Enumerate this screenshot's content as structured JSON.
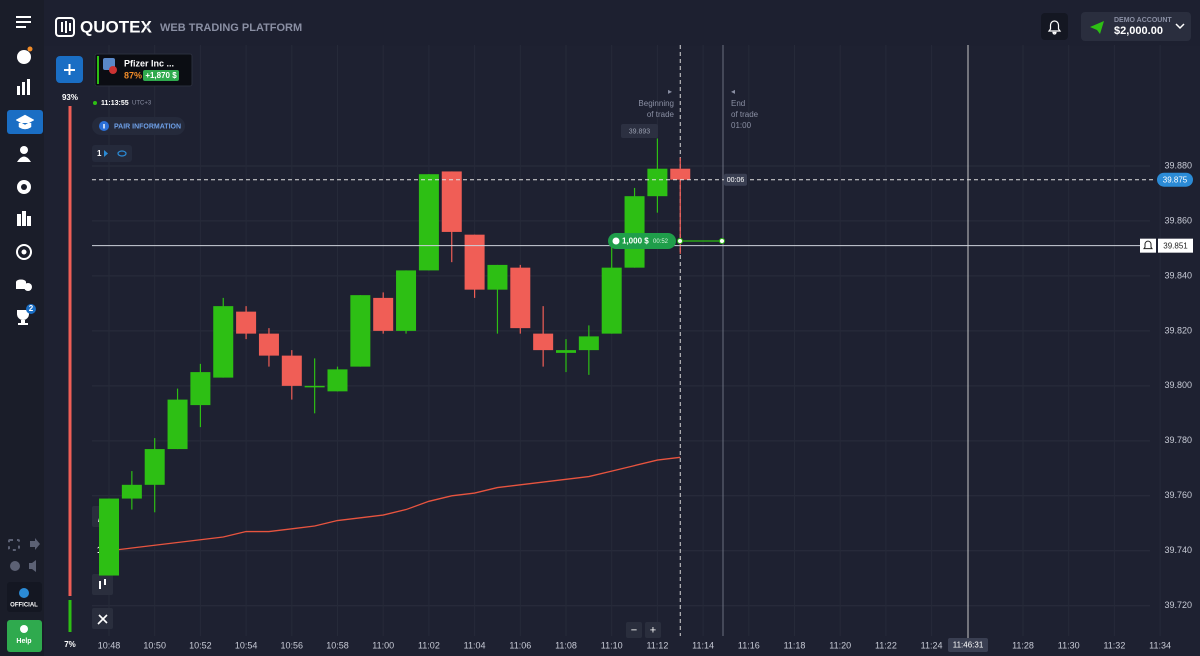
{
  "header": {
    "logo": "QUOTEX",
    "subtitle": "WEB TRADING PLATFORM",
    "account_type": "DEMO ACCOUNT",
    "balance": "$2,000.00"
  },
  "sidebar": {
    "tournament_badge": "2",
    "official": "OFFICIAL",
    "help": "Help"
  },
  "asset": {
    "name": "Pfizer Inc ...",
    "payout": "87%",
    "profit": "+1,870 $"
  },
  "sentiment": {
    "up": "93%",
    "down": "7%"
  },
  "clock": {
    "time": "11:13:55",
    "zone": "UTC+3"
  },
  "pair_information": "PAIR INFORMATION",
  "indicator_count": "1",
  "timeframe": "1m",
  "trade": {
    "beginning": "Beginning\nof trade",
    "end": "End\nof trade",
    "end_timer": "01:00",
    "amount": "1,000 $",
    "timer": "00:52",
    "high_label": "39.893",
    "countdown": "00:06"
  },
  "zoom": {
    "out": "−",
    "in": "+"
  },
  "chart": {
    "type": "candlestick",
    "ylim": [
      39.709,
      39.924
    ],
    "yticks": [
      {
        "value": 39.72,
        "label": "39.720"
      },
      {
        "value": 39.74,
        "label": "39.740"
      },
      {
        "value": 39.76,
        "label": "39.760"
      },
      {
        "value": 39.78,
        "label": "39.780"
      },
      {
        "value": 39.8,
        "label": "39.800"
      },
      {
        "value": 39.82,
        "label": "39.820"
      },
      {
        "value": 39.84,
        "label": "39.840"
      },
      {
        "value": 39.86,
        "label": "39.860"
      },
      {
        "value": 39.88,
        "label": "39.880"
      }
    ],
    "xticks": [
      "10:48",
      "10:50",
      "10:52",
      "10:54",
      "10:56",
      "10:58",
      "11:00",
      "11:02",
      "11:04",
      "11:06",
      "11:08",
      "11:10",
      "11:12",
      "11:14",
      "11:16",
      "11:18",
      "11:20",
      "11:22",
      "11:24",
      "11:28",
      "11:30",
      "11:32",
      "11:34"
    ],
    "cursor_time": "11:46:31",
    "current_price": {
      "value": 39.875,
      "label": "39.875"
    },
    "alert_price": {
      "value": 39.851,
      "label": "39.851"
    },
    "up_color": "#2dbf14",
    "down_color": "#f05e56",
    "ma_color": "#e8543f",
    "candles": [
      {
        "open": 39.731,
        "high": 39.759,
        "low": 39.731,
        "close": 39.759
      },
      {
        "open": 39.759,
        "high": 39.769,
        "low": 39.755,
        "close": 39.764
      },
      {
        "open": 39.764,
        "high": 39.781,
        "low": 39.754,
        "close": 39.777
      },
      {
        "open": 39.777,
        "high": 39.799,
        "low": 39.777,
        "close": 39.795
      },
      {
        "open": 39.793,
        "high": 39.808,
        "low": 39.785,
        "close": 39.805
      },
      {
        "open": 39.803,
        "high": 39.832,
        "low": 39.803,
        "close": 39.829
      },
      {
        "open": 39.827,
        "high": 39.829,
        "low": 39.817,
        "close": 39.819
      },
      {
        "open": 39.819,
        "high": 39.821,
        "low": 39.807,
        "close": 39.811
      },
      {
        "open": 39.811,
        "high": 39.813,
        "low": 39.795,
        "close": 39.8
      },
      {
        "open": 39.8,
        "high": 39.81,
        "low": 39.79,
        "close": 39.8
      },
      {
        "open": 39.798,
        "high": 39.807,
        "low": 39.798,
        "close": 39.806
      },
      {
        "open": 39.807,
        "high": 39.833,
        "low": 39.807,
        "close": 39.833
      },
      {
        "open": 39.832,
        "high": 39.834,
        "low": 39.819,
        "close": 39.82
      },
      {
        "open": 39.82,
        "high": 39.842,
        "low": 39.819,
        "close": 39.842
      },
      {
        "open": 39.842,
        "high": 39.877,
        "low": 39.842,
        "close": 39.877
      },
      {
        "open": 39.878,
        "high": 39.878,
        "low": 39.845,
        "close": 39.856
      },
      {
        "open": 39.855,
        "high": 39.855,
        "low": 39.832,
        "close": 39.835
      },
      {
        "open": 39.835,
        "high": 39.844,
        "low": 39.819,
        "close": 39.844
      },
      {
        "open": 39.843,
        "high": 39.844,
        "low": 39.819,
        "close": 39.821
      },
      {
        "open": 39.819,
        "high": 39.829,
        "low": 39.807,
        "close": 39.813
      },
      {
        "open": 39.812,
        "high": 39.817,
        "low": 39.805,
        "close": 39.813
      },
      {
        "open": 39.813,
        "high": 39.822,
        "low": 39.804,
        "close": 39.818
      },
      {
        "open": 39.819,
        "high": 39.852,
        "low": 39.819,
        "close": 39.843
      },
      {
        "open": 39.843,
        "high": 39.872,
        "low": 39.843,
        "close": 39.869
      },
      {
        "open": 39.869,
        "high": 39.89,
        "low": 39.863,
        "close": 39.879
      },
      {
        "open": 39.879,
        "high": 39.883,
        "low": 39.848,
        "close": 39.875
      }
    ],
    "moving_average": [
      39.74,
      39.741,
      39.742,
      39.743,
      39.744,
      39.745,
      39.747,
      39.747,
      39.748,
      39.749,
      39.751,
      39.752,
      39.753,
      39.755,
      39.758,
      39.76,
      39.761,
      39.763,
      39.764,
      39.765,
      39.766,
      39.767,
      39.769,
      39.771,
      39.773,
      39.774
    ]
  }
}
